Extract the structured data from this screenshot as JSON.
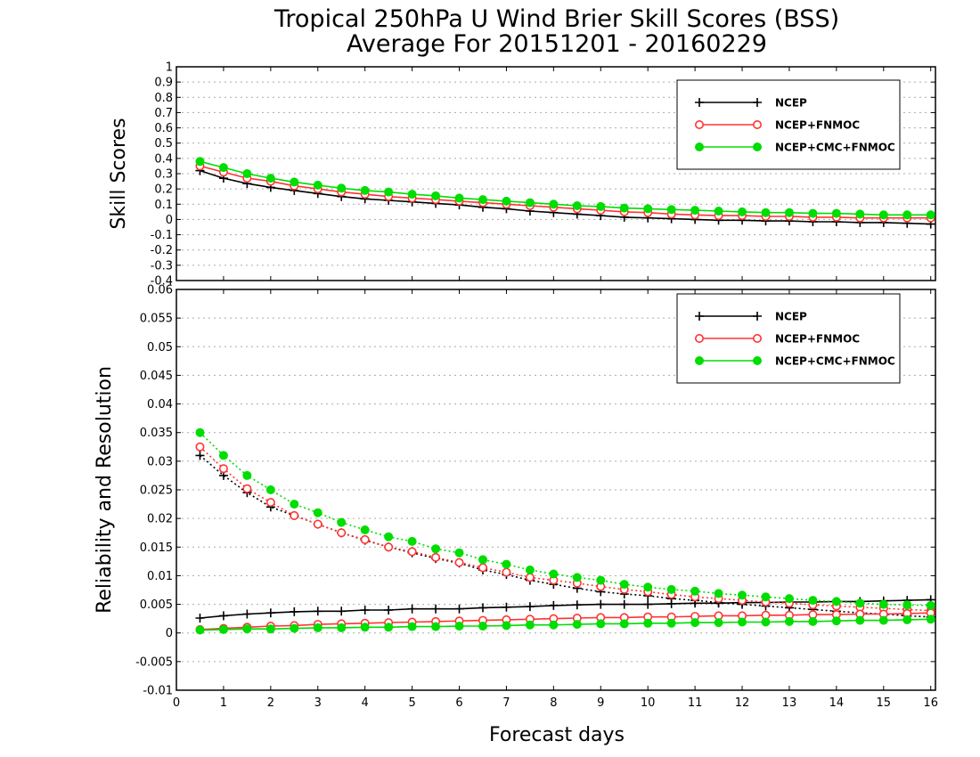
{
  "title": {
    "line1": "Tropical 250hPa U Wind Brier Skill Scores (BSS)",
    "line2": "Average For 20151201 - 20160229"
  },
  "xlabel": "Forecast days",
  "colors": {
    "ncep": "#000000",
    "ncep_fnmoc": "#ff3333",
    "ncep_cmc_fnmoc": "#00dd00"
  },
  "chart_data": [
    {
      "type": "line",
      "ylabel": "Skill Scores",
      "xlim": [
        0,
        16.1
      ],
      "ylim": [
        -0.4,
        1
      ],
      "xticks": [
        "0",
        "1",
        "2",
        "3",
        "4",
        "5",
        "6",
        "7",
        "8",
        "9",
        "10",
        "11",
        "12",
        "13",
        "14",
        "15",
        "16"
      ],
      "yticks": [
        "-0.4",
        "-0.3",
        "-0.2",
        "-0.1",
        "0",
        "0.1",
        "0.2",
        "0.3",
        "0.4",
        "0.5",
        "0.6",
        "0.7",
        "0.8",
        "0.9",
        "1"
      ],
      "grid": true,
      "legend_position": "top-right",
      "x": [
        0.5,
        1,
        1.5,
        2,
        2.5,
        3,
        3.5,
        4,
        4.5,
        5,
        5.5,
        6,
        6.5,
        7,
        7.5,
        8,
        8.5,
        9,
        9.5,
        10,
        10.5,
        11,
        11.5,
        12,
        12.5,
        13,
        13.5,
        14,
        14.5,
        15,
        15.5,
        16
      ],
      "series": [
        {
          "name": "NCEP",
          "style": "solid",
          "marker": "plus",
          "values": [
            0.32,
            0.27,
            0.235,
            0.21,
            0.19,
            0.17,
            0.15,
            0.135,
            0.125,
            0.115,
            0.105,
            0.095,
            0.08,
            0.07,
            0.055,
            0.045,
            0.035,
            0.025,
            0.015,
            0.01,
            0.005,
            0.0,
            -0.005,
            -0.005,
            -0.01,
            -0.01,
            -0.015,
            -0.015,
            -0.02,
            -0.02,
            -0.025,
            -0.03
          ]
        },
        {
          "name": "NCEP+FNMOC",
          "style": "solid",
          "marker": "open-circle",
          "values": [
            0.35,
            0.31,
            0.27,
            0.25,
            0.22,
            0.2,
            0.18,
            0.165,
            0.15,
            0.14,
            0.13,
            0.12,
            0.11,
            0.1,
            0.09,
            0.08,
            0.07,
            0.06,
            0.05,
            0.045,
            0.035,
            0.03,
            0.025,
            0.025,
            0.02,
            0.02,
            0.015,
            0.015,
            0.01,
            0.01,
            0.01,
            0.01
          ]
        },
        {
          "name": "NCEP+CMC+FNMOC",
          "style": "solid",
          "marker": "filled-circle",
          "values": [
            0.38,
            0.34,
            0.3,
            0.27,
            0.245,
            0.225,
            0.205,
            0.19,
            0.18,
            0.165,
            0.155,
            0.14,
            0.13,
            0.12,
            0.11,
            0.1,
            0.09,
            0.085,
            0.075,
            0.07,
            0.065,
            0.06,
            0.055,
            0.05,
            0.045,
            0.045,
            0.04,
            0.04,
            0.035,
            0.03,
            0.03,
            0.03
          ]
        }
      ]
    },
    {
      "type": "line",
      "ylabel": "Reliability and Resolution",
      "xlim": [
        0,
        16.1
      ],
      "ylim": [
        -0.01,
        0.06
      ],
      "xticks": [
        "0",
        "1",
        "2",
        "3",
        "4",
        "5",
        "6",
        "7",
        "8",
        "9",
        "10",
        "11",
        "12",
        "13",
        "14",
        "15",
        "16"
      ],
      "yticks": [
        "-0.01",
        "-0.005",
        "0",
        "0.005",
        "0.01",
        "0.015",
        "0.02",
        "0.025",
        "0.03",
        "0.035",
        "0.04",
        "0.045",
        "0.05",
        "0.055",
        "0.06"
      ],
      "grid": true,
      "legend_position": "top-right",
      "x": [
        0.5,
        1,
        1.5,
        2,
        2.5,
        3,
        3.5,
        4,
        4.5,
        5,
        5.5,
        6,
        6.5,
        7,
        7.5,
        8,
        8.5,
        9,
        9.5,
        10,
        10.5,
        11,
        11.5,
        12,
        12.5,
        13,
        13.5,
        14,
        14.5,
        15,
        15.5,
        16
      ],
      "series": [
        {
          "name": "NCEP",
          "role": "reliability",
          "style": "dotted",
          "marker": "plus",
          "values": [
            0.031,
            0.0275,
            0.0245,
            0.022,
            0.0205,
            0.019,
            0.0175,
            0.0162,
            0.015,
            0.014,
            0.013,
            0.0122,
            0.011,
            0.0102,
            0.0092,
            0.0085,
            0.0078,
            0.0072,
            0.0068,
            0.0065,
            0.006,
            0.0057,
            0.0053,
            0.005,
            0.0047,
            0.0044,
            0.0041,
            0.0038,
            0.0035,
            0.0033,
            0.003,
            0.0028
          ]
        },
        {
          "name": "NCEP",
          "role": "resolution",
          "style": "solid",
          "marker": "plus",
          "values": [
            0.0026,
            0.003,
            0.0033,
            0.0035,
            0.0037,
            0.0038,
            0.0038,
            0.004,
            0.004,
            0.0042,
            0.0042,
            0.0042,
            0.0044,
            0.0045,
            0.0046,
            0.0048,
            0.0049,
            0.005,
            0.005,
            0.005,
            0.0051,
            0.0052,
            0.0052,
            0.0053,
            0.0053,
            0.0054,
            0.0054,
            0.0055,
            0.0055,
            0.0056,
            0.0057,
            0.0058
          ]
        },
        {
          "name": "NCEP+FNMOC",
          "role": "reliability",
          "style": "dotted",
          "marker": "open-circle",
          "values": [
            0.0325,
            0.0287,
            0.0252,
            0.0228,
            0.0205,
            0.019,
            0.0175,
            0.0163,
            0.015,
            0.0142,
            0.0132,
            0.0123,
            0.0114,
            0.0106,
            0.0097,
            0.0092,
            0.0087,
            0.0081,
            0.0076,
            0.0072,
            0.0067,
            0.0063,
            0.006,
            0.0057,
            0.0054,
            0.0052,
            0.0049,
            0.0047,
            0.0045,
            0.0043,
            0.0041,
            0.0039
          ]
        },
        {
          "name": "NCEP+FNMOC",
          "role": "resolution",
          "style": "solid",
          "marker": "open-circle",
          "values": [
            0.0006,
            0.0008,
            0.001,
            0.0012,
            0.0013,
            0.0015,
            0.0016,
            0.0017,
            0.0018,
            0.0019,
            0.002,
            0.0021,
            0.0022,
            0.0023,
            0.0024,
            0.0025,
            0.0026,
            0.0027,
            0.0027,
            0.0028,
            0.0028,
            0.0029,
            0.003,
            0.003,
            0.0031,
            0.0031,
            0.0032,
            0.0032,
            0.0033,
            0.0033,
            0.0034,
            0.0035
          ]
        },
        {
          "name": "NCEP+CMC+FNMOC",
          "role": "reliability",
          "style": "dotted",
          "marker": "filled-circle",
          "values": [
            0.035,
            0.031,
            0.0275,
            0.025,
            0.0225,
            0.021,
            0.0193,
            0.018,
            0.0168,
            0.016,
            0.0147,
            0.014,
            0.0128,
            0.012,
            0.011,
            0.0103,
            0.0097,
            0.0092,
            0.0085,
            0.008,
            0.0076,
            0.0073,
            0.0069,
            0.0066,
            0.0063,
            0.006,
            0.0057,
            0.0055,
            0.0052,
            0.005,
            0.0049,
            0.0048
          ]
        },
        {
          "name": "NCEP+CMC+FNMOC",
          "role": "resolution",
          "style": "solid",
          "marker": "filled-circle",
          "values": [
            0.0005,
            0.0006,
            0.0007,
            0.0007,
            0.0008,
            0.0009,
            0.0009,
            0.001,
            0.001,
            0.0011,
            0.0011,
            0.0012,
            0.0012,
            0.0013,
            0.0014,
            0.0014,
            0.0015,
            0.0016,
            0.0016,
            0.0017,
            0.0017,
            0.0018,
            0.0018,
            0.0019,
            0.0019,
            0.002,
            0.002,
            0.0021,
            0.0022,
            0.0022,
            0.0023,
            0.0024
          ]
        }
      ]
    }
  ]
}
